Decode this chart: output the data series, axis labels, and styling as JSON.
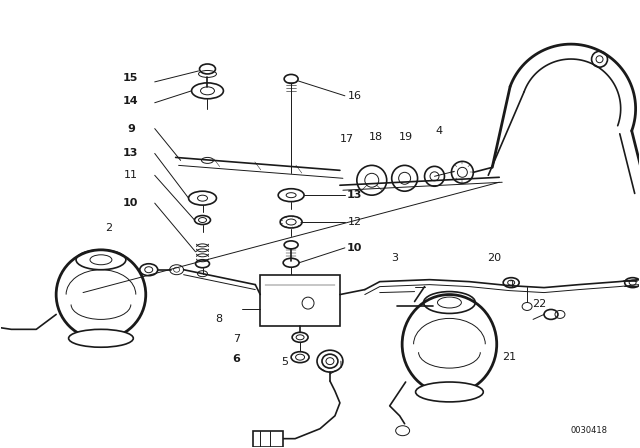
{
  "bg_color": "#ffffff",
  "line_color": "#1a1a1a",
  "part_number_text": "0030418",
  "fig_width": 6.4,
  "fig_height": 4.48,
  "dpi": 100
}
